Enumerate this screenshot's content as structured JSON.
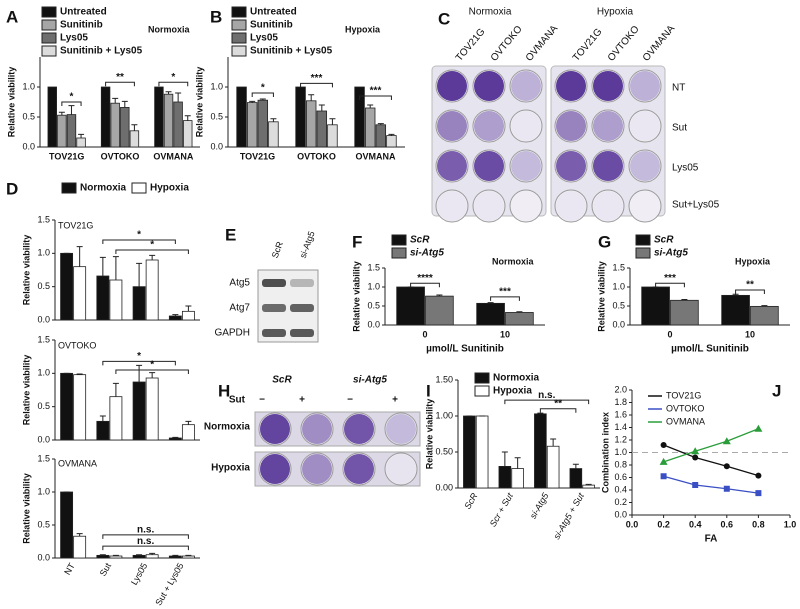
{
  "chart_data": [
    {
      "panel": "A",
      "type": "bar",
      "annotation": "Normoxia",
      "ylabel": "Relative viability",
      "categories": [
        "TOV21G",
        "OVTOKO",
        "OVMANA"
      ],
      "series": [
        {
          "name": "Untreated",
          "color": "#111111",
          "values": [
            1,
            1,
            1
          ]
        },
        {
          "name": "Sunitinib",
          "color": "#a6a6a6",
          "values": [
            0.53,
            0.73,
            0.88
          ],
          "errors": [
            0.05,
            0.08,
            0.04
          ]
        },
        {
          "name": "Lys05",
          "color": "#6e6e6e",
          "values": [
            0.54,
            0.66,
            0.75
          ],
          "errors": [
            0.15,
            0.1,
            0.15
          ]
        },
        {
          "name": "Sunitinib + Lys05",
          "color": "#dcdcdc",
          "values": [
            0.15,
            0.27,
            0.44
          ],
          "errors": [
            0.06,
            0.1,
            0.08
          ]
        }
      ],
      "ylim": [
        0,
        1.5
      ],
      "yticks": [
        {
          "value": 0,
          "label": "0.0"
        },
        0.5,
        {
          "value": 1,
          "label": "1.0"
        }
      ],
      "significance": [
        "*",
        "**",
        "*"
      ]
    },
    {
      "panel": "B",
      "type": "bar",
      "annotation": "Hypoxia",
      "ylabel": "Relative viability",
      "categories": [
        "TOV21G",
        "OVTOKO",
        "OVMANA"
      ],
      "series": [
        {
          "name": "Untreated",
          "color": "#111111",
          "values": [
            1,
            1,
            1
          ]
        },
        {
          "name": "Sunitinib",
          "color": "#a6a6a6",
          "values": [
            0.74,
            0.77,
            0.65
          ],
          "errors": [
            0.02,
            0.1,
            0.05
          ]
        },
        {
          "name": "Lys05",
          "color": "#6e6e6e",
          "values": [
            0.78,
            0.6,
            0.37
          ],
          "errors": [
            0.02,
            0.1,
            0.02
          ]
        },
        {
          "name": "Sunitinib + Lys05",
          "color": "#dcdcdc",
          "values": [
            0.42,
            0.37,
            0.19
          ],
          "errors": [
            0.05,
            0.1,
            0.02
          ]
        }
      ],
      "ylim": [
        0,
        1.5
      ],
      "yticks": [
        {
          "value": 0,
          "label": "0.0"
        },
        0.5,
        {
          "value": 1,
          "label": "1.0"
        }
      ],
      "significance": [
        "*",
        "***",
        "***"
      ]
    },
    {
      "panel": "D",
      "type": "bar",
      "title": "TOV21G",
      "ylabel": "Relative viability",
      "categories": [
        null,
        null,
        null,
        null
      ],
      "series": [
        {
          "name": "Normoxia",
          "color": "#111111",
          "values": [
            1,
            0.66,
            0.5,
            0.06
          ],
          "errors": [
            0,
            0.28,
            0.35,
            0.02
          ]
        },
        {
          "name": "Hypoxia",
          "color": "#ffffff",
          "values": [
            0.8,
            0.6,
            0.9,
            0.13
          ],
          "errors": [
            0.3,
            0.35,
            0.07,
            0.08
          ]
        }
      ],
      "ylim": [
        0,
        1.5
      ],
      "yticks": [
        {
          "value": 0,
          "label": "0.0"
        },
        0.5,
        {
          "value": 1,
          "label": "1.0"
        },
        1.5
      ],
      "significance": [
        "*",
        "*"
      ]
    },
    {
      "type": "bar",
      "title": "OVTOKO",
      "ylabel": "Relative viability",
      "categories": [
        null,
        null,
        null,
        null
      ],
      "series": [
        {
          "color": "#111111",
          "values": [
            1,
            0.28,
            0.87,
            0.03
          ],
          "errors": [
            0,
            0.08,
            0.25,
            0.01
          ]
        },
        {
          "color": "#ffffff",
          "values": [
            0.98,
            0.65,
            0.93,
            0.23
          ],
          "errors": [
            0.01,
            0.2,
            0.08,
            0.05
          ]
        }
      ],
      "ylim": [
        0,
        1.5
      ],
      "yticks": [
        {
          "value": 0,
          "label": "0.0"
        },
        0.5,
        {
          "value": 1,
          "label": "1.0"
        },
        1.5
      ],
      "significance": [
        "*",
        "*"
      ]
    },
    {
      "type": "bar",
      "title": "OVMANA",
      "ylabel": "Relative viability",
      "categories": [
        "NT",
        "Sut",
        "Lys05",
        "Sut + Lys05"
      ],
      "series": [
        {
          "color": "#111111",
          "values": [
            1,
            0.04,
            0.04,
            0.03
          ],
          "errors": [
            0,
            0.01,
            0.01,
            0.01
          ]
        },
        {
          "color": "#ffffff",
          "values": [
            0.33,
            0.03,
            0.05,
            0.03
          ],
          "errors": [
            0.04,
            0.01,
            0.02,
            0.01
          ]
        }
      ],
      "ylim": [
        0,
        1.5
      ],
      "yticks": [
        {
          "value": 0,
          "label": "0.0"
        },
        0.5,
        {
          "value": 1,
          "label": "1.0"
        },
        1.5
      ],
      "significance": [
        "n.s.",
        "n.s."
      ]
    },
    {
      "panel": "F",
      "type": "bar",
      "annotation": "Normoxia",
      "ylabel": "Relative viability",
      "xlabel": "µmol/L Sunitinib",
      "categories": [
        "0",
        "10"
      ],
      "series": [
        {
          "name": "ScR",
          "color": "#111111",
          "values": [
            1,
            0.57
          ],
          "errors": [
            0,
            0.02
          ]
        },
        {
          "name": "si-Atg5",
          "color": "#777777",
          "values": [
            0.76,
            0.33
          ],
          "errors": [
            0.03,
            0.02
          ]
        }
      ],
      "ylim": [
        0,
        1.5
      ],
      "yticks": [
        {
          "value": 0,
          "label": "0.0"
        },
        0.5,
        {
          "value": 1,
          "label": "1.0"
        },
        1.5
      ],
      "significance": [
        "****",
        "***"
      ]
    },
    {
      "panel": "G",
      "type": "bar",
      "annotation": "Hypoxia",
      "ylabel": "Relative viability",
      "xlabel": "µmol/L Sunitinib",
      "categories": [
        "0",
        "10"
      ],
      "series": [
        {
          "name": "ScR",
          "color": "#111111",
          "values": [
            1,
            0.78
          ],
          "errors": [
            0,
            0.03
          ]
        },
        {
          "name": "si-Atg5",
          "color": "#777777",
          "values": [
            0.65,
            0.49
          ],
          "errors": [
            0.02,
            0.02
          ]
        }
      ],
      "ylim": [
        0,
        1.5
      ],
      "yticks": [
        {
          "value": 0,
          "label": "0.0"
        },
        0.5,
        {
          "value": 1,
          "label": "1.0"
        },
        1.5
      ],
      "significance": [
        "***",
        "**"
      ]
    },
    {
      "panel": "I",
      "type": "bar",
      "ylabel": "Relative viability",
      "categories": [
        "ScR",
        "Scr + Sut",
        "si-Atg5",
        "si-Atg5 + Sut"
      ],
      "series": [
        {
          "name": "Normoxia",
          "color": "#111111",
          "values": [
            1,
            0.3,
            1.03,
            0.27
          ],
          "errors": [
            0,
            0.2,
            0.01,
            0.06
          ]
        },
        {
          "name": "Hypoxia",
          "color": "#ffffff",
          "values": [
            1,
            0.27,
            0.58,
            0.04
          ],
          "errors": [
            0,
            0.15,
            0.1,
            0.01
          ]
        }
      ],
      "ylim": [
        0,
        1.5
      ],
      "yticks": [
        {
          "value": 0,
          "label": "0.00"
        },
        {
          "value": 0.5,
          "label": "0.50"
        },
        {
          "value": 1,
          "label": "1.00"
        },
        {
          "value": 1.5,
          "label": "1.50"
        }
      ],
      "significance": [
        "n.s.",
        "**"
      ]
    },
    {
      "panel": "J",
      "type": "line",
      "ylabel": "Combination index",
      "xlabel": "FA",
      "x": [
        0.2,
        0.4,
        0.6,
        0.8
      ],
      "series": [
        {
          "name": "TOV21G",
          "color": "#111111",
          "marker": "circle",
          "values": [
            1.12,
            0.92,
            0.78,
            0.63
          ]
        },
        {
          "name": "OVTOKO",
          "color": "#3a4fc4",
          "marker": "square",
          "values": [
            0.62,
            0.48,
            0.42,
            0.35
          ]
        },
        {
          "name": "OVMANA",
          "color": "#2a9d3a",
          "marker": "triangle",
          "values": [
            0.85,
            1.02,
            1.18,
            1.38
          ]
        }
      ],
      "reference_line": 1,
      "xlim": [
        0,
        1
      ],
      "xticks": [
        {
          "value": 0,
          "label": "0.0"
        },
        0.2,
        0.4,
        0.6,
        0.8,
        {
          "value": 1,
          "label": "1.0"
        }
      ],
      "ylim": [
        0,
        2
      ],
      "yticks": [
        {
          "value": 0,
          "label": "0.0"
        },
        0.2,
        0.4,
        0.6,
        0.8,
        {
          "value": 1,
          "label": "1.0"
        },
        1.2,
        1.4,
        1.6,
        1.8,
        {
          "value": 2,
          "label": "2.0"
        }
      ]
    }
  ],
  "blots": {
    "C": {
      "panel": "C",
      "conditions": [
        "Normoxia",
        "Hypoxia"
      ],
      "columns": [
        "TOV21G",
        "OVTOKO",
        "OVMANA",
        "TOV21G",
        "OVTOKO",
        "OVMANA"
      ],
      "rows": [
        "NT",
        "Sut",
        "Lys05",
        "Sut+Lys05"
      ]
    },
    "E": {
      "panel": "E",
      "columns": [
        "ScR",
        "si-Atg5"
      ],
      "rows": [
        "Atg5",
        "Atg7",
        "GAPDH"
      ]
    },
    "H": {
      "panel": "H",
      "columns": [
        "ScR",
        "si-Atg5"
      ],
      "treatment": "Sut",
      "signs": [
        "−",
        "+",
        "−",
        "+"
      ],
      "rows": [
        "Normoxia",
        "Hypoxia"
      ]
    }
  }
}
